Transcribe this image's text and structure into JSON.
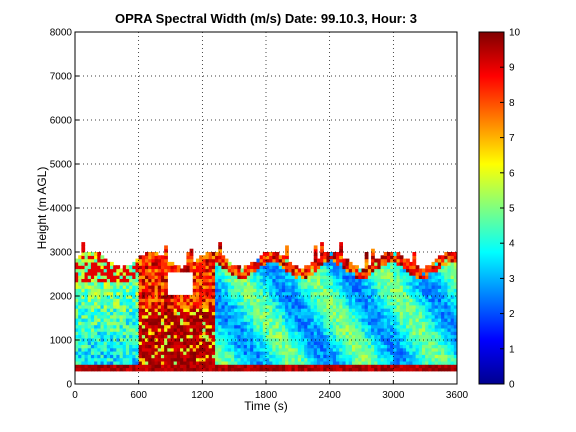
{
  "chart_data": {
    "type": "heatmap",
    "title": "OPRA Spectral Width (m/s)  Date: 99.10.3, Hour: 3",
    "xlabel": "Time (s)",
    "ylabel": "Height (m AGL)",
    "xlim": [
      0,
      3600
    ],
    "ylim": [
      0,
      8000
    ],
    "x_ticks": [
      "0",
      "600",
      "1200",
      "1800",
      "2400",
      "3000",
      "3600"
    ],
    "y_ticks": [
      "0",
      "1000",
      "2000",
      "3000",
      "4000",
      "5000",
      "6000",
      "7000",
      "8000"
    ],
    "grid": true,
    "colormap": "jet",
    "colorbar": {
      "range": [
        0,
        10
      ],
      "ticks": [
        "0",
        "1",
        "2",
        "3",
        "4",
        "5",
        "6",
        "7",
        "8",
        "9",
        "10"
      ]
    },
    "data_extent": {
      "x": [
        0,
        3600
      ],
      "y": [
        300,
        3000
      ]
    },
    "features": [
      {
        "region": "bottom gate 300-450 m, all times",
        "value": 9
      },
      {
        "region": "0-600 s, 300-2500 m",
        "value": 4.5
      },
      {
        "region": "600-1300 s, 300-1700 m",
        "value": 9
      },
      {
        "region": "1300-3600 s, 300-2800 m",
        "value": 4
      },
      {
        "region": "top edge near 2800-3000 m",
        "value": 8
      }
    ]
  }
}
